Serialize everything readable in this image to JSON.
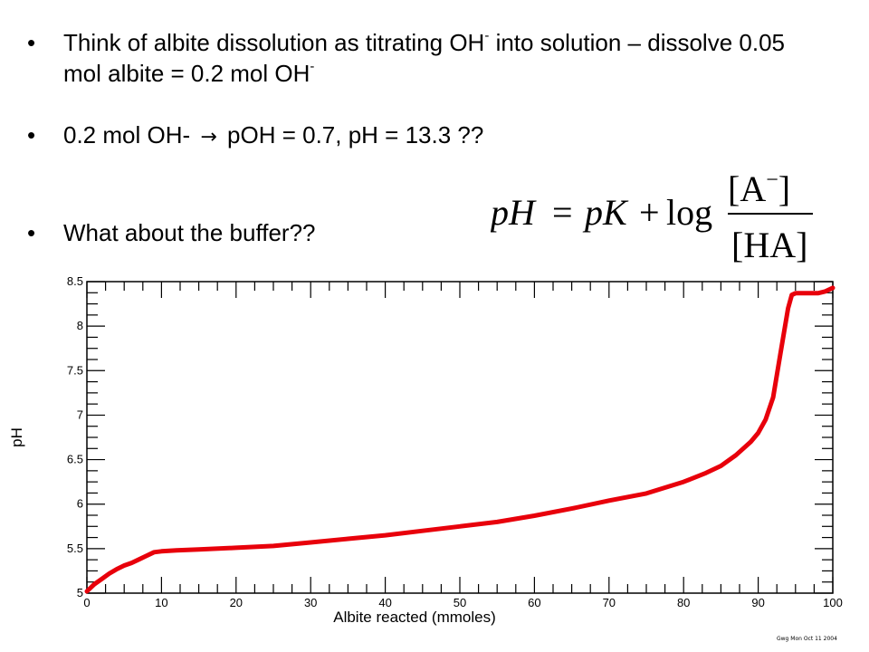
{
  "bullets": {
    "b1": {
      "part1": "Think of albite dissolution as titrating OH",
      "sup1": "-",
      "part2": " into solution – dissolve 0.05 mol albite = 0.2 mol OH",
      "sup2": "-"
    },
    "b2": {
      "left": "0.2 mol OH- ",
      "arrow": "→",
      "right": " pOH = 0.7, pH = 13.3  ??"
    },
    "b3": {
      "text": "What about the buffer??"
    }
  },
  "equation": {
    "lhs": "pH",
    "eq": "=",
    "pk": "pK",
    "plus": "+",
    "log": "log",
    "numerator": "[A",
    "numerator_sup": "−",
    "numerator_close": "]",
    "denominator": "[HA]"
  },
  "stamp": "Gwg Mon Oct 11 2004",
  "colors": {
    "curve": "#e8000b",
    "axis": "#000000"
  },
  "chart_data": {
    "type": "line",
    "xlabel": "Albite reacted (mmoles)",
    "ylabel": "pH",
    "xlim": [
      0,
      100
    ],
    "ylim": [
      5,
      8.5
    ],
    "xticks": [
      "0",
      "10",
      "20",
      "30",
      "40",
      "50",
      "60",
      "70",
      "80",
      "90",
      "100"
    ],
    "yticks": [
      "5",
      "5.5",
      "6",
      "6.5",
      "7",
      "7.5",
      "8",
      "8.5"
    ],
    "series": [
      {
        "x": [
          0,
          1,
          2,
          3,
          4,
          5,
          6,
          7,
          8,
          9,
          10,
          12,
          15,
          20,
          25,
          30,
          35,
          40,
          45,
          50,
          55,
          60,
          65,
          70,
          75,
          80,
          83,
          85,
          87,
          89,
          90,
          91,
          92,
          93,
          94,
          94.5,
          95,
          96,
          98,
          99,
          100
        ],
        "y": [
          5.02,
          5.1,
          5.16,
          5.22,
          5.27,
          5.31,
          5.34,
          5.38,
          5.42,
          5.46,
          5.47,
          5.48,
          5.49,
          5.51,
          5.53,
          5.57,
          5.61,
          5.65,
          5.7,
          5.75,
          5.8,
          5.87,
          5.95,
          6.04,
          6.12,
          6.25,
          6.35,
          6.43,
          6.55,
          6.7,
          6.8,
          6.95,
          7.2,
          7.7,
          8.2,
          8.35,
          8.37,
          8.37,
          8.37,
          8.39,
          8.43
        ]
      }
    ]
  }
}
